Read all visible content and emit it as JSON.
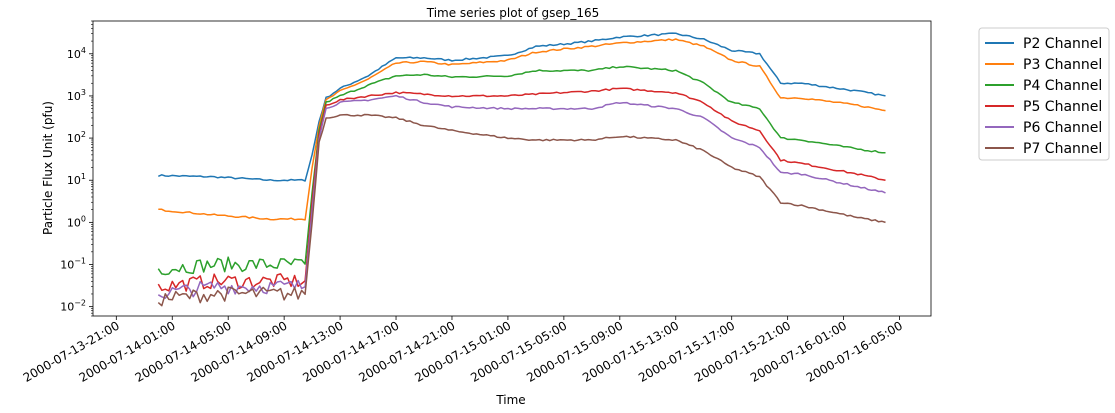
{
  "chart_data": {
    "type": "line",
    "title": "Time series plot of gsep_165",
    "xlabel": "Time",
    "ylabel": "Particle Flux Unit (pfu)",
    "yscale": "log",
    "ylim": [
      0.006,
      60000
    ],
    "xlim": [
      "2000-07-13T19:20",
      "2000-07-16T07:15"
    ],
    "yticks": [
      {
        "value": 0.01,
        "base": "10",
        "exp": "−2"
      },
      {
        "value": 0.1,
        "base": "10",
        "exp": "−1"
      },
      {
        "value": 1,
        "base": "10",
        "exp": "0"
      },
      {
        "value": 10,
        "base": "10",
        "exp": "1"
      },
      {
        "value": 100,
        "base": "10",
        "exp": "2"
      },
      {
        "value": 1000,
        "base": "10",
        "exp": "3"
      },
      {
        "value": 10000,
        "base": "10",
        "exp": "4"
      }
    ],
    "xticks": [
      {
        "t": "2000-07-13T21:00",
        "label": "2000-07-13-21:00"
      },
      {
        "t": "2000-07-14T01:00",
        "label": "2000-07-14-01:00"
      },
      {
        "t": "2000-07-14T05:00",
        "label": "2000-07-14-05:00"
      },
      {
        "t": "2000-07-14T09:00",
        "label": "2000-07-14-09:00"
      },
      {
        "t": "2000-07-14T13:00",
        "label": "2000-07-14-13:00"
      },
      {
        "t": "2000-07-14T17:00",
        "label": "2000-07-14-17:00"
      },
      {
        "t": "2000-07-14T21:00",
        "label": "2000-07-14-21:00"
      },
      {
        "t": "2000-07-15T01:00",
        "label": "2000-07-15-01:00"
      },
      {
        "t": "2000-07-15T05:00",
        "label": "2000-07-15-05:00"
      },
      {
        "t": "2000-07-15T09:00",
        "label": "2000-07-15-09:00"
      },
      {
        "t": "2000-07-15T13:00",
        "label": "2000-07-15-13:00"
      },
      {
        "t": "2000-07-15T17:00",
        "label": "2000-07-15-17:00"
      },
      {
        "t": "2000-07-15T21:00",
        "label": "2000-07-15-21:00"
      },
      {
        "t": "2000-07-16T01:00",
        "label": "2000-07-16-01:00"
      },
      {
        "t": "2000-07-16T05:00",
        "label": "2000-07-16-05:00"
      }
    ],
    "legend_position": "outside-top-right",
    "series": [
      {
        "name": "P2 Channel",
        "color": "#1f77b4",
        "points": [
          [
            "2000-07-14T00:00",
            13
          ],
          [
            "2000-07-14T04:00",
            12
          ],
          [
            "2000-07-14T08:00",
            10
          ],
          [
            "2000-07-14T10:30",
            10
          ],
          [
            "2000-07-14T11:00",
            40
          ],
          [
            "2000-07-14T11:30",
            250
          ],
          [
            "2000-07-14T12:00",
            900
          ],
          [
            "2000-07-14T13:00",
            1500
          ],
          [
            "2000-07-14T15:00",
            3000
          ],
          [
            "2000-07-14T17:00",
            8000
          ],
          [
            "2000-07-14T19:00",
            8000
          ],
          [
            "2000-07-14T21:00",
            7000
          ],
          [
            "2000-07-15T01:00",
            9000
          ],
          [
            "2000-07-15T03:00",
            15000
          ],
          [
            "2000-07-15T05:00",
            17000
          ],
          [
            "2000-07-15T07:00",
            20000
          ],
          [
            "2000-07-15T09:00",
            25000
          ],
          [
            "2000-07-15T13:00",
            30000
          ],
          [
            "2000-07-15T15:00",
            22000
          ],
          [
            "2000-07-15T17:00",
            12000
          ],
          [
            "2000-07-15T19:00",
            10000
          ],
          [
            "2000-07-15T20:30",
            2000
          ],
          [
            "2000-07-15T22:00",
            2000
          ],
          [
            "2000-07-16T02:00",
            1300
          ],
          [
            "2000-07-16T04:00",
            1000
          ]
        ]
      },
      {
        "name": "P3 Channel",
        "color": "#ff7f0e",
        "points": [
          [
            "2000-07-14T00:00",
            2
          ],
          [
            "2000-07-14T04:00",
            1.5
          ],
          [
            "2000-07-14T08:00",
            1.2
          ],
          [
            "2000-07-14T10:30",
            1.2
          ],
          [
            "2000-07-14T11:00",
            20
          ],
          [
            "2000-07-14T11:30",
            200
          ],
          [
            "2000-07-14T12:00",
            800
          ],
          [
            "2000-07-14T13:00",
            1300
          ],
          [
            "2000-07-14T15:00",
            2500
          ],
          [
            "2000-07-14T17:00",
            6000
          ],
          [
            "2000-07-14T19:00",
            6500
          ],
          [
            "2000-07-14T21:00",
            5500
          ],
          [
            "2000-07-15T01:00",
            7000
          ],
          [
            "2000-07-15T03:00",
            11000
          ],
          [
            "2000-07-15T05:00",
            13000
          ],
          [
            "2000-07-15T07:00",
            15000
          ],
          [
            "2000-07-15T09:00",
            18000
          ],
          [
            "2000-07-15T13:00",
            22000
          ],
          [
            "2000-07-15T15:00",
            15000
          ],
          [
            "2000-07-15T17:00",
            7000
          ],
          [
            "2000-07-15T19:00",
            5000
          ],
          [
            "2000-07-15T20:30",
            900
          ],
          [
            "2000-07-15T22:00",
            900
          ],
          [
            "2000-07-16T02:00",
            600
          ],
          [
            "2000-07-16T04:00",
            450
          ]
        ]
      },
      {
        "name": "P4 Channel",
        "color": "#2ca02c",
        "points": [
          [
            "2000-07-14T00:00",
            0.08
          ],
          [
            "2000-07-14T04:00",
            0.1
          ],
          [
            "2000-07-14T08:00",
            0.1
          ],
          [
            "2000-07-14T10:30",
            0.1
          ],
          [
            "2000-07-14T11:00",
            5
          ],
          [
            "2000-07-14T11:30",
            150
          ],
          [
            "2000-07-14T12:00",
            700
          ],
          [
            "2000-07-14T13:00",
            1000
          ],
          [
            "2000-07-14T15:00",
            1800
          ],
          [
            "2000-07-14T17:00",
            3000
          ],
          [
            "2000-07-14T19:00",
            3200
          ],
          [
            "2000-07-14T21:00",
            2800
          ],
          [
            "2000-07-15T01:00",
            3000
          ],
          [
            "2000-07-15T03:00",
            4000
          ],
          [
            "2000-07-15T05:00",
            4000
          ],
          [
            "2000-07-15T07:00",
            4000
          ],
          [
            "2000-07-15T09:00",
            5000
          ],
          [
            "2000-07-15T13:00",
            4000
          ],
          [
            "2000-07-15T15:00",
            2000
          ],
          [
            "2000-07-15T17:00",
            700
          ],
          [
            "2000-07-15T19:00",
            500
          ],
          [
            "2000-07-15T20:30",
            100
          ],
          [
            "2000-07-15T22:00",
            90
          ],
          [
            "2000-07-16T02:00",
            55
          ],
          [
            "2000-07-16T04:00",
            45
          ]
        ]
      },
      {
        "name": "P5 Channel",
        "color": "#d62728",
        "points": [
          [
            "2000-07-14T00:00",
            0.03
          ],
          [
            "2000-07-14T04:00",
            0.04
          ],
          [
            "2000-07-14T08:00",
            0.04
          ],
          [
            "2000-07-14T10:30",
            0.04
          ],
          [
            "2000-07-14T11:00",
            3
          ],
          [
            "2000-07-14T11:30",
            120
          ],
          [
            "2000-07-14T12:00",
            600
          ],
          [
            "2000-07-14T13:00",
            800
          ],
          [
            "2000-07-14T15:00",
            1000
          ],
          [
            "2000-07-14T17:00",
            1200
          ],
          [
            "2000-07-14T19:00",
            1100
          ],
          [
            "2000-07-14T21:00",
            1000
          ],
          [
            "2000-07-15T01:00",
            1000
          ],
          [
            "2000-07-15T03:00",
            1100
          ],
          [
            "2000-07-15T05:00",
            1200
          ],
          [
            "2000-07-15T07:00",
            1300
          ],
          [
            "2000-07-15T09:00",
            1500
          ],
          [
            "2000-07-15T13:00",
            1200
          ],
          [
            "2000-07-15T15:00",
            700
          ],
          [
            "2000-07-15T17:00",
            250
          ],
          [
            "2000-07-15T19:00",
            150
          ],
          [
            "2000-07-15T20:30",
            30
          ],
          [
            "2000-07-15T22:00",
            25
          ],
          [
            "2000-07-16T02:00",
            14
          ],
          [
            "2000-07-16T04:00",
            10
          ]
        ]
      },
      {
        "name": "P6 Channel",
        "color": "#9467bd",
        "points": [
          [
            "2000-07-14T00:00",
            0.02
          ],
          [
            "2000-07-14T04:00",
            0.03
          ],
          [
            "2000-07-14T08:00",
            0.03
          ],
          [
            "2000-07-14T10:30",
            0.03
          ],
          [
            "2000-07-14T11:00",
            2
          ],
          [
            "2000-07-14T11:30",
            100
          ],
          [
            "2000-07-14T12:00",
            500
          ],
          [
            "2000-07-14T13:00",
            700
          ],
          [
            "2000-07-14T15:00",
            800
          ],
          [
            "2000-07-14T17:00",
            1000
          ],
          [
            "2000-07-14T19:00",
            700
          ],
          [
            "2000-07-14T21:00",
            550
          ],
          [
            "2000-07-15T01:00",
            500
          ],
          [
            "2000-07-15T03:00",
            500
          ],
          [
            "2000-07-15T05:00",
            500
          ],
          [
            "2000-07-15T07:00",
            500
          ],
          [
            "2000-07-15T09:00",
            700
          ],
          [
            "2000-07-15T13:00",
            500
          ],
          [
            "2000-07-15T15:00",
            300
          ],
          [
            "2000-07-15T17:00",
            100
          ],
          [
            "2000-07-15T19:00",
            60
          ],
          [
            "2000-07-15T20:30",
            15
          ],
          [
            "2000-07-15T22:00",
            14
          ],
          [
            "2000-07-16T02:00",
            7
          ],
          [
            "2000-07-16T04:00",
            5
          ]
        ]
      },
      {
        "name": "P7 Channel",
        "color": "#8c564b",
        "points": [
          [
            "2000-07-14T00:00",
            0.015
          ],
          [
            "2000-07-14T04:00",
            0.02
          ],
          [
            "2000-07-14T08:00",
            0.02
          ],
          [
            "2000-07-14T10:30",
            0.02
          ],
          [
            "2000-07-14T11:00",
            1
          ],
          [
            "2000-07-14T11:30",
            80
          ],
          [
            "2000-07-14T12:00",
            300
          ],
          [
            "2000-07-14T13:00",
            350
          ],
          [
            "2000-07-14T15:00",
            350
          ],
          [
            "2000-07-14T17:00",
            300
          ],
          [
            "2000-07-14T19:00",
            200
          ],
          [
            "2000-07-14T21:00",
            150
          ],
          [
            "2000-07-15T01:00",
            100
          ],
          [
            "2000-07-15T03:00",
            90
          ],
          [
            "2000-07-15T05:00",
            90
          ],
          [
            "2000-07-15T07:00",
            90
          ],
          [
            "2000-07-15T09:00",
            110
          ],
          [
            "2000-07-15T13:00",
            90
          ],
          [
            "2000-07-15T15:00",
            50
          ],
          [
            "2000-07-15T17:00",
            20
          ],
          [
            "2000-07-15T19:00",
            12
          ],
          [
            "2000-07-15T20:30",
            3
          ],
          [
            "2000-07-15T22:00",
            2.5
          ],
          [
            "2000-07-16T02:00",
            1.3
          ],
          [
            "2000-07-16T04:00",
            1
          ]
        ]
      }
    ]
  }
}
